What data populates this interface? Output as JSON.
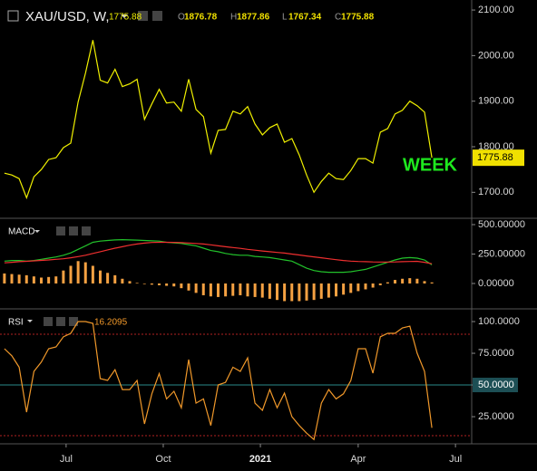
{
  "chart_data": [
    {
      "type": "line",
      "title": "XAU/USD, W,",
      "ohlc": [
        {
          "label": "O",
          "value": 1876.78
        },
        {
          "label": "H",
          "value": 1877.86
        },
        {
          "label": "L",
          "value": 1767.34
        },
        {
          "label": "C",
          "value": 1775.88
        }
      ],
      "annotation": "WEEK",
      "annotation_color": "#1ee81e",
      "series": [
        {
          "color": "#f0f000",
          "values": [
            1742,
            1738,
            1730,
            1688,
            1734,
            1750,
            1772,
            1776,
            1798,
            1808,
            1898,
            1962,
            2034,
            1946,
            1940,
            1970,
            1932,
            1938,
            1948,
            1860,
            1894,
            1926,
            1896,
            1898,
            1878,
            1948,
            1882,
            1866,
            1786,
            1836,
            1838,
            1878,
            1872,
            1888,
            1850,
            1826,
            1842,
            1850,
            1810,
            1818,
            1782,
            1738,
            1700,
            1724,
            1742,
            1730,
            1728,
            1748,
            1774,
            1774,
            1764,
            1832,
            1840,
            1872,
            1880,
            1900,
            1890,
            1876,
            1775.88
          ]
        }
      ],
      "xlim": [
        -0.6,
        63.4
      ],
      "ylim": [
        1645,
        2122
      ],
      "yticks": [
        {
          "value": 2100,
          "label": "2100.00"
        },
        {
          "value": 2000,
          "label": "2000.00"
        },
        {
          "value": 1900,
          "label": "1900.00"
        },
        {
          "value": 1800,
          "label": "1800.00"
        },
        {
          "value": 1700,
          "label": "1700.00"
        }
      ]
    },
    {
      "type": "macd",
      "title": "MACD",
      "series": [
        {
          "style": "histogram",
          "color": "#f5a142",
          "values": [
            85,
            80,
            75,
            70,
            60,
            50,
            55,
            60,
            110,
            150,
            190,
            180,
            150,
            110,
            90,
            70,
            40,
            20,
            5,
            -5,
            -10,
            -15,
            -20,
            -25,
            -40,
            -60,
            -80,
            -100,
            -110,
            -115,
            -110,
            -105,
            -100,
            -110,
            -115,
            -120,
            -130,
            -140,
            -150,
            -150,
            -150,
            -145,
            -140,
            -130,
            -120,
            -110,
            -95,
            -80,
            -65,
            -50,
            -35,
            -15,
            10,
            30,
            40,
            45,
            40,
            20,
            9.11135
          ]
        },
        {
          "style": "line",
          "color": "#22c22b",
          "values": [
            190,
            195,
            195,
            190,
            195,
            205,
            215,
            225,
            240,
            260,
            290,
            320,
            350,
            360,
            365,
            370,
            372,
            370,
            368,
            365,
            362,
            360,
            350,
            345,
            340,
            330,
            320,
            300,
            280,
            270,
            255,
            245,
            240,
            240,
            230,
            225,
            220,
            210,
            200,
            190,
            160,
            130,
            110,
            100,
            95,
            95,
            95,
            100,
            110,
            120,
            140,
            160,
            180,
            200,
            215,
            220,
            215,
            200,
            158.52808
          ]
        },
        {
          "style": "line",
          "color": "#ef2f2f",
          "values": [
            175,
            180,
            185,
            188,
            192,
            196,
            200,
            205,
            210,
            218,
            228,
            240,
            255,
            270,
            285,
            300,
            312,
            325,
            335,
            343,
            348,
            350,
            350,
            349,
            347,
            344,
            340,
            335,
            328,
            320,
            312,
            305,
            298,
            290,
            283,
            276,
            270,
            264,
            258,
            250,
            242,
            234,
            226,
            218,
            210,
            202,
            195,
            190,
            187,
            185,
            183,
            182,
            182,
            183,
            185,
            187,
            188,
            180,
            167.63943
          ]
        }
      ],
      "xlim": [
        -0.6,
        63.4
      ],
      "ylim": [
        -208,
        546
      ],
      "yticks": [
        {
          "value": 500,
          "label": "500.00000"
        },
        {
          "value": 250,
          "label": "250.00000"
        },
        {
          "value": 0,
          "label": "0.00000"
        }
      ]
    },
    {
      "type": "line",
      "title": "RSI",
      "series": [
        {
          "color": "#f0982a",
          "values": [
            78.6,
            73,
            64,
            28.6,
            60.7,
            68,
            78.6,
            80,
            88,
            90.7,
            100,
            100,
            98.6,
            55,
            53.6,
            62,
            46.4,
            46.4,
            53.6,
            19.3,
            43,
            59,
            39,
            45,
            32,
            70,
            35.7,
            39,
            18,
            50,
            52,
            64,
            60.7,
            71.4,
            35.7,
            30,
            46.4,
            32,
            43.6,
            25,
            18,
            12,
            7,
            35.7,
            46.4,
            39,
            43,
            53.6,
            78.6,
            78.6,
            59.3,
            88,
            90.7,
            90.7,
            95,
            96.4,
            75,
            60.7,
            16.2095
          ]
        }
      ],
      "levels": [
        {
          "value": 90,
          "color": "#b22222",
          "style": "dotted"
        },
        {
          "value": 50,
          "color": "#2a8a8a",
          "style": "solid"
        },
        {
          "value": 10,
          "color": "#b22222",
          "style": "dotted"
        }
      ],
      "xlim": [
        -0.6,
        63.4
      ],
      "ylim": [
        3.6,
        109.3
      ],
      "yticks": [
        {
          "value": 100,
          "label": "100.0000"
        },
        {
          "value": 75,
          "label": "75.0000"
        },
        {
          "value": 50,
          "label": "50.0000"
        },
        {
          "value": 25,
          "label": "25.0000"
        }
      ],
      "xticks": [
        {
          "value": 8.37,
          "label": "Jul"
        },
        {
          "value": 21.55,
          "label": "Oct"
        },
        {
          "value": 34.73,
          "label": "2021"
        },
        {
          "value": 48.0,
          "label": "Apr"
        },
        {
          "value": 61.2,
          "label": "Jul"
        }
      ]
    }
  ]
}
